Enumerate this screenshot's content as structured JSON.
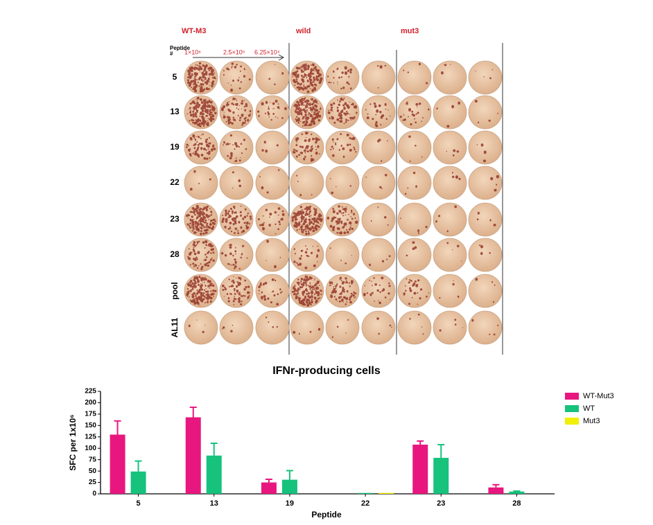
{
  "plate": {
    "groups": [
      "WT-M3",
      "wild",
      "mut3"
    ],
    "row_header": [
      "Peptide",
      "#"
    ],
    "dilutions": [
      "1×10⁶",
      "2.5×10⁵",
      "6.25×10⁴"
    ],
    "rows": [
      "5",
      "13",
      "19",
      "22",
      "23",
      "28",
      "pool",
      "AL11"
    ]
  },
  "chart_data": {
    "type": "bar",
    "title": "IFNr-producing cells",
    "x_label": "Peptide",
    "y_label": "SFC per 1x10⁶",
    "categories": [
      "5",
      "13",
      "19",
      "22",
      "23",
      "28"
    ],
    "series": [
      {
        "name": "WT-Mut3",
        "color": "#e8177f",
        "values": [
          130,
          168,
          25,
          0,
          108,
          14
        ],
        "errors": [
          30,
          22,
          7,
          0,
          8,
          6
        ]
      },
      {
        "name": "WT",
        "color": "#16c27c",
        "values": [
          49,
          84,
          31,
          2,
          79,
          5
        ],
        "errors": [
          23,
          27,
          20,
          0,
          29,
          1
        ]
      },
      {
        "name": "Mut3",
        "color": "#f0f000",
        "values": [
          0,
          0,
          0,
          2,
          0,
          0
        ],
        "errors": [
          0,
          0,
          0,
          0,
          0,
          0
        ]
      }
    ],
    "ylim": [
      0,
      225
    ],
    "yticks": [
      0,
      25,
      50,
      75,
      100,
      125,
      150,
      175,
      200,
      225
    ],
    "legend": "right-top"
  }
}
